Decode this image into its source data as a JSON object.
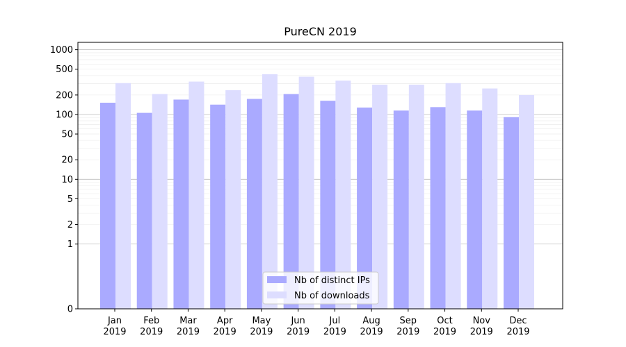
{
  "chart_data": {
    "type": "bar",
    "title": "PureCN 2019",
    "xlabel": "",
    "ylabel": "",
    "yscale": "symlog",
    "ylim": [
      0,
      1300
    ],
    "yticks": [
      0,
      1,
      2,
      5,
      10,
      20,
      50,
      100,
      200,
      500,
      1000
    ],
    "grid": true,
    "legend_position": "bottom-center",
    "categories": [
      [
        "Jan",
        "2019"
      ],
      [
        "Feb",
        "2019"
      ],
      [
        "Mar",
        "2019"
      ],
      [
        "Apr",
        "2019"
      ],
      [
        "May",
        "2019"
      ],
      [
        "Jun",
        "2019"
      ],
      [
        "Jul",
        "2019"
      ],
      [
        "Aug",
        "2019"
      ],
      [
        "Sep",
        "2019"
      ],
      [
        "Oct",
        "2019"
      ],
      [
        "Nov",
        "2019"
      ],
      [
        "Dec",
        "2019"
      ]
    ],
    "series": [
      {
        "name": "Nb of distinct IPs",
        "color": "#aaaaff",
        "values": [
          152,
          106,
          170,
          142,
          174,
          207,
          163,
          128,
          115,
          130,
          115,
          91
        ]
      },
      {
        "name": "Nb of downloads",
        "color": "#ddddff",
        "values": [
          305,
          207,
          322,
          237,
          418,
          383,
          333,
          289,
          289,
          305,
          252,
          200
        ]
      }
    ]
  }
}
